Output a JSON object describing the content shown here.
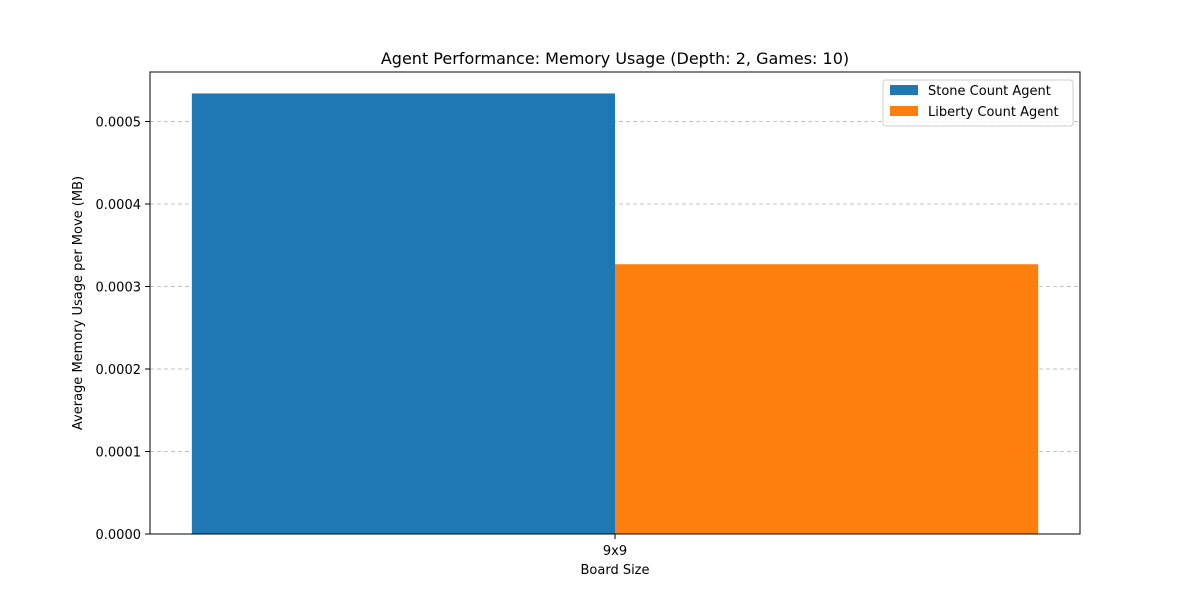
{
  "chart_data": {
    "type": "bar",
    "title": "Agent Performance: Memory Usage (Depth: 2, Games: 10)",
    "xlabel": "Board Size",
    "ylabel": "Average Memory Usage per Move (MB)",
    "categories": [
      "9x9"
    ],
    "series": [
      {
        "name": "Stone Count Agent",
        "values": [
          0.000534
        ],
        "color": "#1f77b4"
      },
      {
        "name": "Liberty Count Agent",
        "values": [
          0.000327
        ],
        "color": "#ff7f0e"
      }
    ],
    "ylim": [
      0,
      0.00056
    ],
    "yticks": [
      "0.0000",
      "0.0001",
      "0.0002",
      "0.0003",
      "0.0004",
      "0.0005"
    ],
    "ytick_values": [
      0,
      0.0001,
      0.0002,
      0.0003,
      0.0004,
      0.0005
    ],
    "grid": "y-dashed",
    "legend_position": "top-right"
  }
}
